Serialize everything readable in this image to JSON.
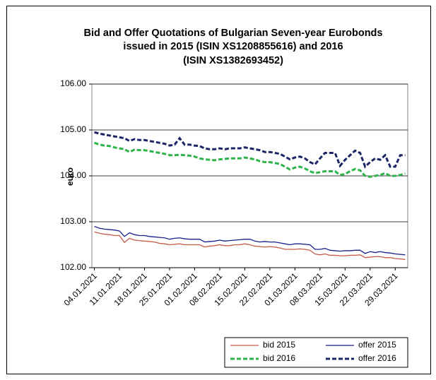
{
  "chart_data": {
    "type": "line",
    "title": [
      "Bid and Offer Quotations of Bulgarian Seven-year Eurobonds",
      "issued in 2015 (ISIN  XS1208855616) and 2016",
      "(ISIN  XS1382693452)"
    ],
    "y_label": "euro",
    "categories": [
      "04.01.2021",
      null,
      null,
      null,
      null,
      "11.01.2021",
      null,
      null,
      null,
      null,
      "18.01.2021",
      null,
      null,
      null,
      null,
      "25.01.2021",
      null,
      null,
      null,
      null,
      "01.02.2021",
      null,
      null,
      null,
      null,
      "08.02.2021",
      null,
      null,
      null,
      null,
      "15.02.2021",
      null,
      null,
      null,
      null,
      "22.02.2021",
      null,
      null,
      null,
      null,
      "01.03.2021",
      null,
      null,
      null,
      null,
      "08.03.2021",
      null,
      null,
      null,
      null,
      "15.03.2021",
      null,
      null,
      null,
      null,
      "22.03.2021",
      null,
      null,
      null,
      null,
      "29.03.2021",
      null,
      null
    ],
    "ylim": [
      102,
      106
    ],
    "yticks": [
      {
        "value": 102,
        "label": "102.00"
      },
      {
        "value": 103,
        "label": "103.00"
      },
      {
        "value": 104,
        "label": "104.00"
      },
      {
        "value": 105,
        "label": "105.00"
      },
      {
        "value": 106,
        "label": "106.00"
      }
    ],
    "grid": true,
    "legend": "bottom-right",
    "series": [
      {
        "name": "bid 2015",
        "color": "#c55a4a",
        "line_style": "solid",
        "values": [
          102.78,
          102.75,
          102.73,
          102.72,
          102.7,
          102.7,
          102.55,
          102.64,
          102.6,
          102.59,
          102.58,
          102.57,
          102.56,
          102.53,
          102.52,
          102.5,
          102.51,
          102.52,
          102.5,
          102.5,
          102.5,
          102.5,
          102.45,
          102.47,
          102.48,
          102.5,
          102.48,
          102.48,
          102.5,
          102.5,
          102.52,
          102.5,
          102.47,
          102.46,
          102.45,
          102.46,
          102.45,
          102.43,
          102.4,
          102.4,
          102.4,
          102.41,
          102.4,
          102.38,
          102.3,
          102.28,
          102.3,
          102.27,
          102.27,
          102.26,
          102.26,
          102.27,
          102.27,
          102.28,
          102.22,
          102.23,
          102.24,
          102.24,
          102.22,
          102.22,
          102.2,
          102.19,
          102.18
        ]
      },
      {
        "name": "offer 2015",
        "color": "#1a1f8c",
        "line_style": "solid",
        "values": [
          102.9,
          102.86,
          102.84,
          102.83,
          102.82,
          102.8,
          102.68,
          102.76,
          102.72,
          102.7,
          102.7,
          102.68,
          102.67,
          102.66,
          102.65,
          102.62,
          102.64,
          102.65,
          102.63,
          102.62,
          102.62,
          102.62,
          102.56,
          102.57,
          102.58,
          102.6,
          102.58,
          102.59,
          102.6,
          102.61,
          102.62,
          102.62,
          102.58,
          102.56,
          102.57,
          102.56,
          102.56,
          102.54,
          102.52,
          102.5,
          102.52,
          102.52,
          102.51,
          102.5,
          102.4,
          102.4,
          102.42,
          102.38,
          102.37,
          102.36,
          102.37,
          102.37,
          102.38,
          102.38,
          102.31,
          102.35,
          102.33,
          102.35,
          102.33,
          102.32,
          102.3,
          102.29,
          102.28
        ]
      },
      {
        "name": "bid 2016",
        "color": "#2db34a",
        "line_style": "dashed",
        "values": [
          104.72,
          104.68,
          104.66,
          104.65,
          104.62,
          104.6,
          104.58,
          104.52,
          104.57,
          104.56,
          104.56,
          104.54,
          104.52,
          104.5,
          104.48,
          104.45,
          104.45,
          104.46,
          104.45,
          104.44,
          104.42,
          104.38,
          104.36,
          104.35,
          104.34,
          104.36,
          104.37,
          104.38,
          104.38,
          104.38,
          104.4,
          104.38,
          104.36,
          104.32,
          104.3,
          104.3,
          104.28,
          104.26,
          104.2,
          104.14,
          104.18,
          104.2,
          104.16,
          104.1,
          104.06,
          104.08,
          104.1,
          104.1,
          104.1,
          104.02,
          104.04,
          104.1,
          104.15,
          104.12,
          104.0,
          103.98,
          104.0,
          104.02,
          104.06,
          104.0,
          104.0,
          104.02,
          104.05
        ]
      },
      {
        "name": "offer 2016",
        "color": "#1c2566",
        "line_style": "dashed",
        "values": [
          104.95,
          104.92,
          104.9,
          104.88,
          104.86,
          104.84,
          104.82,
          104.76,
          104.8,
          104.78,
          104.78,
          104.76,
          104.74,
          104.72,
          104.7,
          104.66,
          104.68,
          104.82,
          104.68,
          104.68,
          104.66,
          104.65,
          104.6,
          104.58,
          104.58,
          104.6,
          104.58,
          104.6,
          104.6,
          104.6,
          104.62,
          104.6,
          104.58,
          104.56,
          104.52,
          104.52,
          104.5,
          104.48,
          104.42,
          104.36,
          104.4,
          104.42,
          104.38,
          104.3,
          104.25,
          104.38,
          104.5,
          104.5,
          104.5,
          104.22,
          104.35,
          104.45,
          104.55,
          104.5,
          104.2,
          104.3,
          104.38,
          104.35,
          104.45,
          104.2,
          104.2,
          104.45,
          104.45
        ]
      }
    ]
  }
}
